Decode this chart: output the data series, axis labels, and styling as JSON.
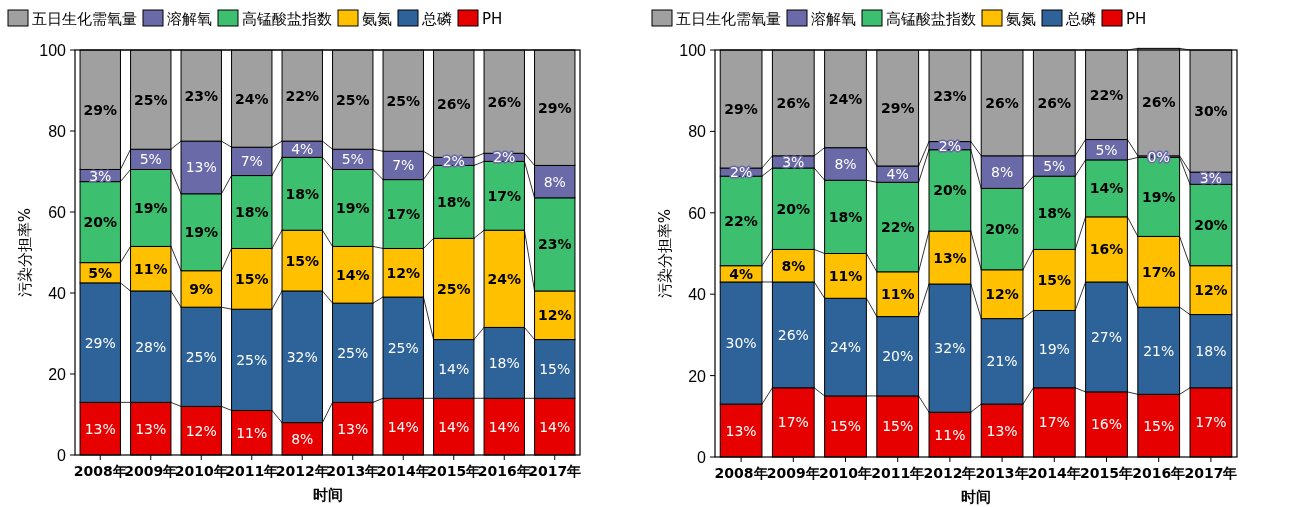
{
  "chart_data": [
    {
      "type": "bar",
      "stacked": true,
      "legend": "top",
      "grid": false,
      "xlabel": "时间",
      "ylabel": "污染分担率%",
      "ylim": [
        0,
        100
      ],
      "yticks": [
        0,
        20,
        40,
        60,
        80,
        100
      ],
      "categories": [
        "2008年",
        "2009年",
        "2010年",
        "2011年",
        "2012年",
        "2013年",
        "2014年",
        "2015年",
        "2016年",
        "2017年"
      ],
      "series": [
        {
          "name": "PH",
          "color": "#e60000",
          "values": [
            13,
            13,
            12,
            11,
            8,
            13,
            14,
            14,
            14,
            14
          ],
          "value_labels": [
            "13%",
            "13%",
            "12%",
            "11%",
            "8%",
            "13%",
            "14%",
            "14%",
            "14%",
            "14%"
          ]
        },
        {
          "name": "总磷",
          "color": "#2e6399",
          "values": [
            29.5,
            27.5,
            24.5,
            25,
            32.5,
            24.5,
            25,
            14.5,
            17.5,
            14.5
          ],
          "value_labels": [
            "29%",
            "28%",
            "25%",
            "25%",
            "32%",
            "25%",
            "25%",
            "14%",
            "18%",
            "15%"
          ]
        },
        {
          "name": "氨氮",
          "color": "#ffc000",
          "values": [
            5,
            11,
            9,
            15,
            15,
            14,
            12,
            25,
            24,
            12
          ],
          "value_labels": [
            "5%",
            "11%",
            "9%",
            "15%",
            "15%",
            "14%",
            "12%",
            "25%",
            "24%",
            "12%"
          ]
        },
        {
          "name": "高锰酸盐指数",
          "color": "#3cbf6e",
          "values": [
            20,
            19,
            19,
            18,
            18,
            19,
            17,
            18,
            17,
            23
          ],
          "value_labels": [
            "20%",
            "19%",
            "19%",
            "18%",
            "18%",
            "19%",
            "17%",
            "18%",
            "17%",
            "23%"
          ]
        },
        {
          "name": "溶解氧",
          "color": "#6b6aa8",
          "values": [
            3,
            5,
            13,
            7,
            4,
            5,
            7,
            2,
            2,
            8
          ],
          "value_labels": [
            "3%",
            "5%",
            "13%",
            "7%",
            "4%",
            "5%",
            "7%",
            "2%",
            "2%",
            "8%"
          ]
        },
        {
          "name": "五日生化需氧量",
          "color": "#a0a0a0",
          "values": [
            29.5,
            24.5,
            22.5,
            24,
            22.5,
            24.5,
            25,
            26.5,
            25.5,
            28.5
          ],
          "value_labels": [
            "29%",
            "25%",
            "23%",
            "24%",
            "22%",
            "25%",
            "25%",
            "26%",
            "26%",
            "29%"
          ]
        }
      ]
    },
    {
      "type": "bar",
      "stacked": true,
      "legend": "top",
      "grid": false,
      "xlabel": "时间",
      "ylabel": "污染分担率%",
      "ylim": [
        0,
        100
      ],
      "yticks": [
        0,
        20,
        40,
        60,
        80,
        100
      ],
      "categories": [
        "2008年",
        "2009年",
        "2010年",
        "2011年",
        "2012年",
        "2013年",
        "2014年",
        "2015年",
        "2016年",
        "2017年"
      ],
      "series": [
        {
          "name": "PH",
          "color": "#e60000",
          "values": [
            13,
            17,
            15,
            15,
            11,
            13,
            17,
            16,
            15.4,
            17
          ],
          "value_labels": [
            "13%",
            "17%",
            "15%",
            "15%",
            "11%",
            "13%",
            "17%",
            "16%",
            "15%",
            "17%"
          ]
        },
        {
          "name": "总磷",
          "color": "#2e6399",
          "values": [
            30,
            26,
            24,
            19.5,
            31.5,
            21,
            19,
            27,
            21.4,
            18
          ],
          "value_labels": [
            "30%",
            "26%",
            "24%",
            "20%",
            "32%",
            "21%",
            "19%",
            "27%",
            "21%",
            "18%"
          ]
        },
        {
          "name": "氨氮",
          "color": "#ffc000",
          "values": [
            4,
            8,
            11,
            11,
            13,
            12,
            15,
            16,
            17.4,
            12
          ],
          "value_labels": [
            "4%",
            "8%",
            "11%",
            "11%",
            "13%",
            "12%",
            "15%",
            "16%",
            "17%",
            "12%"
          ]
        },
        {
          "name": "高锰酸盐指数",
          "color": "#3cbf6e",
          "values": [
            22,
            20,
            18,
            22,
            20,
            20,
            18,
            14,
            19.4,
            20
          ],
          "value_labels": [
            "22%",
            "20%",
            "18%",
            "22%",
            "20%",
            "20%",
            "18%",
            "14%",
            "19%",
            "20%"
          ]
        },
        {
          "name": "溶解氧",
          "color": "#6b6aa8",
          "values": [
            2,
            3,
            8,
            4,
            2,
            8,
            5,
            5,
            0.4,
            3
          ],
          "value_labels": [
            "2%",
            "3%",
            "8%",
            "4%",
            "2%",
            "8%",
            "5%",
            "5%",
            "0%",
            "3%"
          ]
        },
        {
          "name": "五日生化需氧量",
          "color": "#a0a0a0",
          "values": [
            29,
            26,
            24,
            28.5,
            22.5,
            26,
            26,
            22,
            26.4,
            30
          ],
          "value_labels": [
            "29%",
            "26%",
            "24%",
            "29%",
            "23%",
            "26%",
            "26%",
            "22%",
            "26%",
            "30%"
          ]
        }
      ]
    }
  ]
}
